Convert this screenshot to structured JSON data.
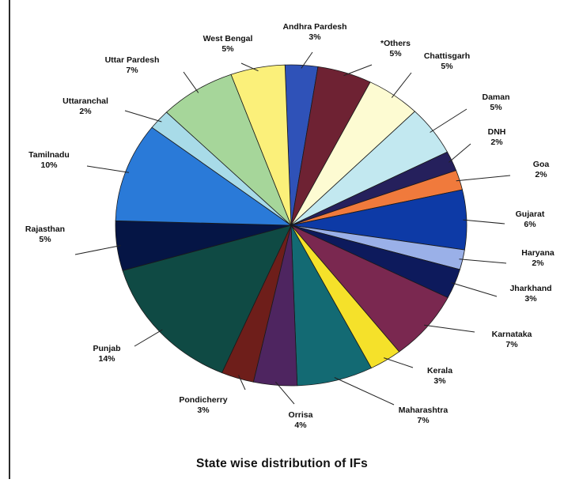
{
  "chart_data": {
    "type": "pie",
    "title": "State wise distribution of IFs",
    "slices": [
      {
        "label": "Andhra Pardesh",
        "value_label": "3%",
        "value": 3,
        "color": "#2f52b8"
      },
      {
        "label": "*Others",
        "value_label": "5%",
        "value": 5,
        "color": "#6e2233"
      },
      {
        "label": "Chattisgarh",
        "value_label": "5%",
        "value": 5,
        "color": "#fdfbd2"
      },
      {
        "label": "Daman",
        "value_label": "5%",
        "value": 5,
        "color": "#c2e8f0"
      },
      {
        "label": "DNH",
        "value_label": "2%",
        "value": 2,
        "color": "#25205c"
      },
      {
        "label": "Goa",
        "value_label": "2%",
        "value": 2,
        "color": "#f07a3c"
      },
      {
        "label": "Gujarat",
        "value_label": "6%",
        "value": 6,
        "color": "#0d3aa6"
      },
      {
        "label": "Haryana",
        "value_label": "2%",
        "value": 2,
        "color": "#9ab0e8"
      },
      {
        "label": "Jharkhand",
        "value_label": "3%",
        "value": 3,
        "color": "#0d1a5c"
      },
      {
        "label": "Karnataka",
        "value_label": "7%",
        "value": 7,
        "color": "#7a2850"
      },
      {
        "label": "Kerala",
        "value_label": "3%",
        "value": 3,
        "color": "#f5e12a"
      },
      {
        "label": "Maharashtra",
        "value_label": "7%",
        "value": 7,
        "color": "#136a73"
      },
      {
        "label": "Orrisa",
        "value_label": "4%",
        "value": 4,
        "color": "#4e2560"
      },
      {
        "label": "Pondicherry",
        "value_label": "3%",
        "value": 3,
        "color": "#6e1e1a"
      },
      {
        "label": "Punjab",
        "value_label": "14%",
        "value": 14,
        "color": "#0f4a44"
      },
      {
        "label": "Rajasthan",
        "value_label": "5%",
        "value": 5,
        "color": "#051545"
      },
      {
        "label": "Tamilnadu",
        "value_label": "10%",
        "value": 10,
        "color": "#2a7ad8"
      },
      {
        "label": "Uttaranchal",
        "value_label": "2%",
        "value": 2,
        "color": "#a8dbe8"
      },
      {
        "label": "Uttar Pardesh",
        "value_label": "7%",
        "value": 7,
        "color": "#a6d69a"
      },
      {
        "label": "West Bengal",
        "value_label": "5%",
        "value": 5,
        "color": "#fbf07a"
      }
    ]
  }
}
